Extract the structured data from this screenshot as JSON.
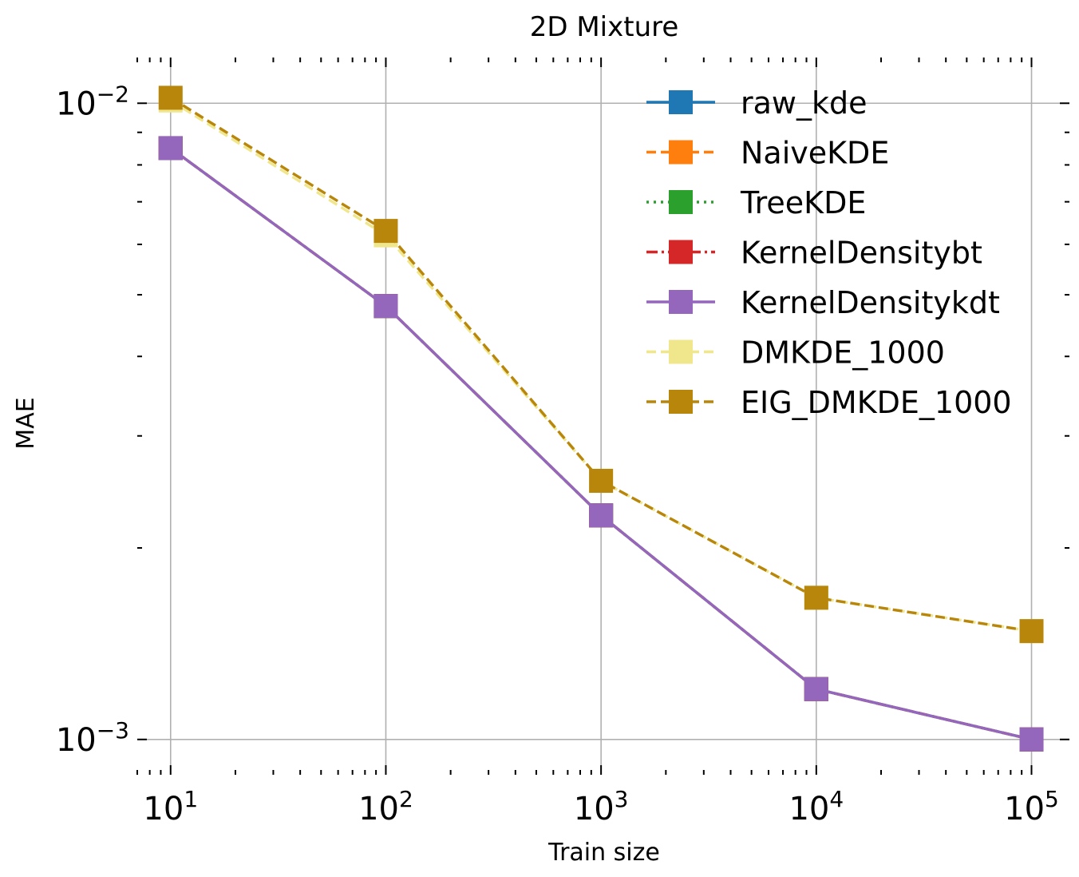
{
  "chart_data": {
    "type": "line",
    "title": "2D Mixture",
    "xlabel": "Train size",
    "ylabel": "MAE",
    "xscale": "log",
    "yscale": "log",
    "xlim": [
      7,
      150000
    ],
    "ylim": [
      0.00088,
      0.0118
    ],
    "grid": true,
    "legend_position": "top-right",
    "x": [
      10,
      100,
      1000,
      10000,
      100000
    ],
    "x_tick_labels": [
      {
        "base": "10",
        "exp": "1",
        "value": 10
      },
      {
        "base": "10",
        "exp": "2",
        "value": 100
      },
      {
        "base": "10",
        "exp": "3",
        "value": 1000
      },
      {
        "base": "10",
        "exp": "4",
        "value": 10000
      },
      {
        "base": "10",
        "exp": "5",
        "value": 100000
      }
    ],
    "y_tick_labels": [
      {
        "base": "10",
        "exp": "−2",
        "value": 0.01
      },
      {
        "base": "10",
        "exp": "−3",
        "value": 0.001
      }
    ],
    "series": [
      {
        "name": "raw_kde",
        "color": "#1f77b4",
        "dash": "solid",
        "values": [
          0.0085,
          0.0048,
          0.00225,
          0.0012,
          0.001
        ]
      },
      {
        "name": "NaiveKDE",
        "color": "#ff7f0e",
        "dash": "dashed",
        "values": [
          0.0085,
          0.0048,
          0.00225,
          0.0012,
          0.001
        ]
      },
      {
        "name": "TreeKDE",
        "color": "#2ca02c",
        "dash": "dotted",
        "values": [
          0.0085,
          0.0048,
          0.00225,
          0.0012,
          0.001
        ]
      },
      {
        "name": "KernelDensitybt",
        "color": "#d62728",
        "dash": "dashdot",
        "values": [
          0.0085,
          0.0048,
          0.00225,
          0.0012,
          0.001
        ]
      },
      {
        "name": "KernelDensitykdt",
        "color": "#9467bd",
        "dash": "solid",
        "values": [
          0.0085,
          0.0048,
          0.00225,
          0.0012,
          0.001
        ]
      },
      {
        "name": "DMKDE_1000",
        "color": "#f0e68c",
        "dash": "dashed",
        "values": [
          0.0101,
          0.0062,
          0.00255,
          0.00167,
          0.00148
        ]
      },
      {
        "name": "EIG_DMKDE_1000",
        "color": "#b8860b",
        "dash": "dashed",
        "values": [
          0.0102,
          0.0063,
          0.00255,
          0.00167,
          0.00148
        ]
      }
    ]
  }
}
